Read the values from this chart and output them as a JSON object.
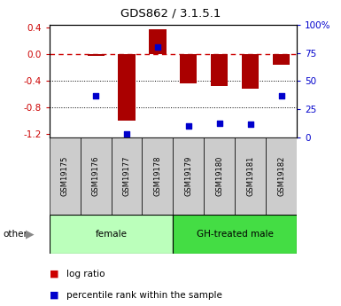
{
  "title": "GDS862 / 3.1.5.1",
  "samples": [
    "GSM19175",
    "GSM19176",
    "GSM19177",
    "GSM19178",
    "GSM19179",
    "GSM19180",
    "GSM19181",
    "GSM19182"
  ],
  "log_ratio": [
    0.0,
    -0.02,
    -1.0,
    0.38,
    -0.43,
    -0.48,
    -0.52,
    -0.15
  ],
  "percentile_rank": [
    null,
    37,
    3,
    80,
    10,
    13,
    12,
    37
  ],
  "groups": [
    {
      "label": "female",
      "color": "#bbffbb",
      "indices": [
        0,
        1,
        2,
        3
      ]
    },
    {
      "label": "GH-treated male",
      "color": "#44dd44",
      "indices": [
        4,
        5,
        6,
        7
      ]
    }
  ],
  "ylim_left": [
    -1.25,
    0.45
  ],
  "ylim_right": [
    0,
    100
  ],
  "yticks_left": [
    0.4,
    0.0,
    -0.4,
    -0.8,
    -1.2
  ],
  "yticks_right": [
    100,
    75,
    50,
    25,
    0
  ],
  "bar_color": "#aa0000",
  "dot_color": "#0000cc",
  "zero_line_color": "#cc0000",
  "grid_color": "#000000",
  "legend_bar_color": "#cc0000",
  "legend_dot_color": "#0000cc",
  "other_label": "other",
  "legend_items": [
    "log ratio",
    "percentile rank within the sample"
  ]
}
